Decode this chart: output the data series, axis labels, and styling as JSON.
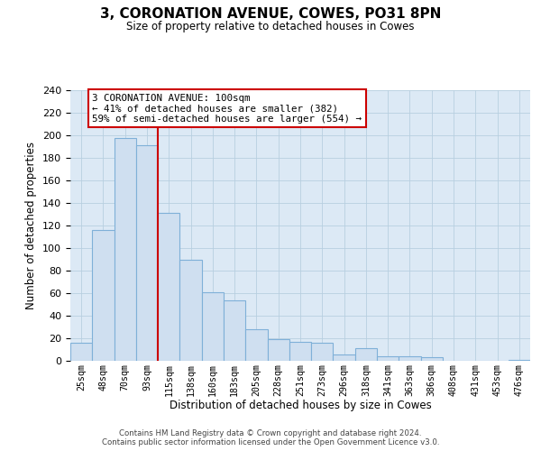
{
  "title": "3, CORONATION AVENUE, COWES, PO31 8PN",
  "subtitle": "Size of property relative to detached houses in Cowes",
  "xlabel": "Distribution of detached houses by size in Cowes",
  "ylabel": "Number of detached properties",
  "categories": [
    "25sqm",
    "48sqm",
    "70sqm",
    "93sqm",
    "115sqm",
    "138sqm",
    "160sqm",
    "183sqm",
    "205sqm",
    "228sqm",
    "251sqm",
    "273sqm",
    "296sqm",
    "318sqm",
    "341sqm",
    "363sqm",
    "386sqm",
    "408sqm",
    "431sqm",
    "453sqm",
    "476sqm"
  ],
  "values": [
    16,
    116,
    198,
    191,
    131,
    90,
    61,
    54,
    28,
    19,
    17,
    16,
    6,
    11,
    4,
    4,
    3,
    0,
    0,
    0,
    1
  ],
  "bar_color": "#cfdff0",
  "bar_edge_color": "#7fb0d8",
  "highlight_line_color": "#cc0000",
  "highlight_line_index": 3,
  "annotation_title": "3 CORONATION AVENUE: 100sqm",
  "annotation_line1": "← 41% of detached houses are smaller (382)",
  "annotation_line2": "59% of semi-detached houses are larger (554) →",
  "annotation_box_color": "#ffffff",
  "annotation_box_edge_color": "#cc0000",
  "plot_bg_color": "#dce9f5",
  "ylim": [
    0,
    240
  ],
  "yticks": [
    0,
    20,
    40,
    60,
    80,
    100,
    120,
    140,
    160,
    180,
    200,
    220,
    240
  ],
  "footer_line1": "Contains HM Land Registry data © Crown copyright and database right 2024.",
  "footer_line2": "Contains public sector information licensed under the Open Government Licence v3.0.",
  "background_color": "#ffffff",
  "grid_color": "#b8cfe0"
}
